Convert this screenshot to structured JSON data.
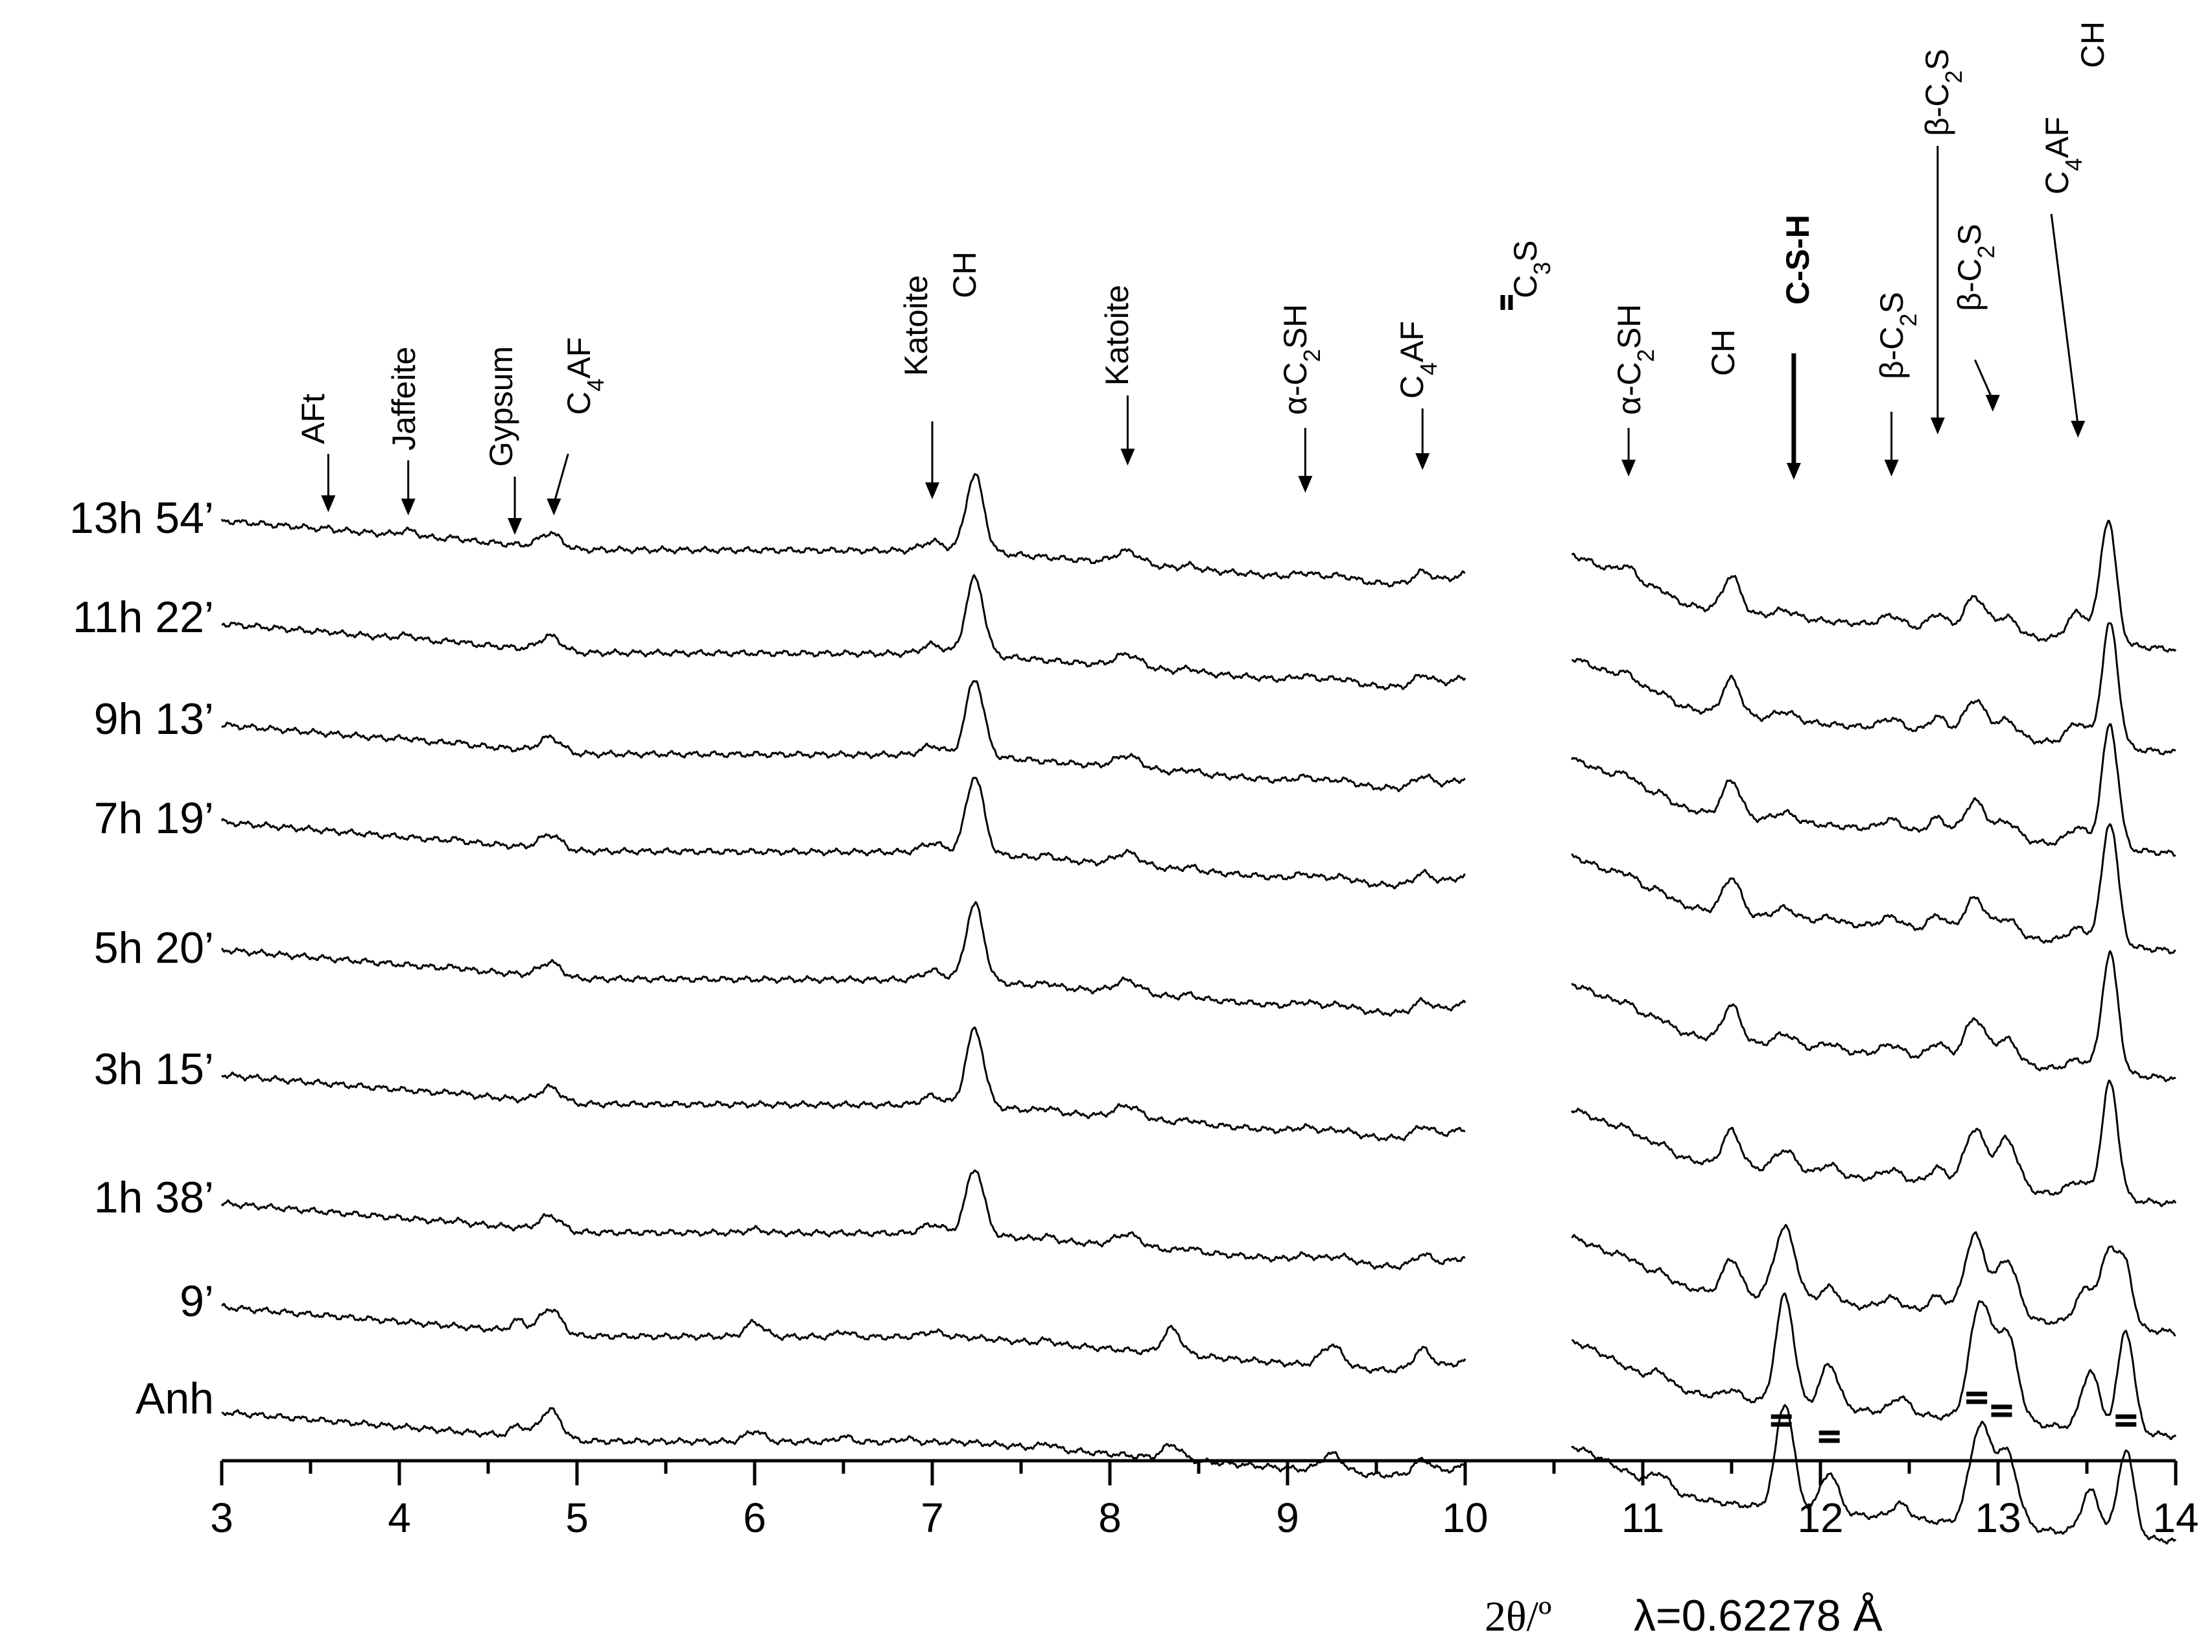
{
  "chart_data": {
    "type": "line",
    "xlabel": "2θ/º",
    "wavelength": "λ=0.62278 Å",
    "xlim": [
      3,
      14
    ],
    "xticks": [
      "3",
      "4",
      "5",
      "6",
      "7",
      "8",
      "9",
      "10",
      "11",
      "12",
      "13",
      "14"
    ],
    "series": [
      {
        "name": "13h 54’",
        "peaks": [
          [
            3.6,
            0.015,
            0.04
          ],
          [
            4.05,
            0.05,
            0.15
          ],
          [
            4.32,
            0.04,
            0.05
          ],
          [
            4.85,
            0.06,
            0.4
          ],
          [
            7.0,
            0.06,
            0.25
          ],
          [
            7.24,
            0.05,
            2.1
          ],
          [
            8.1,
            0.07,
            0.35
          ],
          [
            8.45,
            0.04,
            0.1
          ],
          [
            9.1,
            0.06,
            0.15
          ],
          [
            9.3,
            0.08,
            0.15
          ],
          [
            9.76,
            0.05,
            0.3
          ],
          [
            10.92,
            0.06,
            0.4
          ],
          [
            11.1,
            0.05,
            0.2
          ],
          [
            11.5,
            0.05,
            1.0
          ],
          [
            11.8,
            0.06,
            0.2
          ],
          [
            12.4,
            0.06,
            0.3
          ],
          [
            12.66,
            0.05,
            0.45
          ],
          [
            12.87,
            0.06,
            1.0
          ],
          [
            13.05,
            0.06,
            0.5
          ],
          [
            13.45,
            0.06,
            0.8
          ],
          [
            13.62,
            0.045,
            3.4
          ]
        ]
      },
      {
        "name": "11h 22’",
        "peaks": [
          [
            3.6,
            0.015,
            0.04
          ],
          [
            4.05,
            0.05,
            0.1
          ],
          [
            4.32,
            0.04,
            0.05
          ],
          [
            4.85,
            0.06,
            0.4
          ],
          [
            7.0,
            0.06,
            0.25
          ],
          [
            7.24,
            0.05,
            2.1
          ],
          [
            8.1,
            0.07,
            0.35
          ],
          [
            8.45,
            0.04,
            0.1
          ],
          [
            9.1,
            0.06,
            0.15
          ],
          [
            9.3,
            0.08,
            0.15
          ],
          [
            9.76,
            0.05,
            0.3
          ],
          [
            10.92,
            0.06,
            0.3
          ],
          [
            11.1,
            0.05,
            0.2
          ],
          [
            11.5,
            0.05,
            1.0
          ],
          [
            11.8,
            0.06,
            0.25
          ],
          [
            12.4,
            0.06,
            0.3
          ],
          [
            12.66,
            0.05,
            0.45
          ],
          [
            12.87,
            0.06,
            1.0
          ],
          [
            13.05,
            0.06,
            0.5
          ],
          [
            13.45,
            0.06,
            0.6
          ],
          [
            13.63,
            0.045,
            3.4
          ]
        ]
      },
      {
        "name": "9h 13’",
        "peaks": [
          [
            4.05,
            0.05,
            0.05
          ],
          [
            4.32,
            0.04,
            0.05
          ],
          [
            4.85,
            0.06,
            0.4
          ],
          [
            7.0,
            0.06,
            0.25
          ],
          [
            7.24,
            0.05,
            2.1
          ],
          [
            8.1,
            0.07,
            0.35
          ],
          [
            8.45,
            0.04,
            0.1
          ],
          [
            9.1,
            0.06,
            0.15
          ],
          [
            9.3,
            0.08,
            0.15
          ],
          [
            9.76,
            0.05,
            0.3
          ],
          [
            10.92,
            0.06,
            0.3
          ],
          [
            11.1,
            0.05,
            0.2
          ],
          [
            11.5,
            0.05,
            1.0
          ],
          [
            11.8,
            0.06,
            0.25
          ],
          [
            12.4,
            0.06,
            0.3
          ],
          [
            12.66,
            0.05,
            0.45
          ],
          [
            12.87,
            0.06,
            1.0
          ],
          [
            13.05,
            0.06,
            0.5
          ],
          [
            13.45,
            0.06,
            0.5
          ],
          [
            13.63,
            0.045,
            3.4
          ]
        ]
      },
      {
        "name": "7h 19’",
        "peaks": [
          [
            4.32,
            0.04,
            0.05
          ],
          [
            4.85,
            0.06,
            0.4
          ],
          [
            7.0,
            0.06,
            0.25
          ],
          [
            7.24,
            0.05,
            2.1
          ],
          [
            7.65,
            0.04,
            0.1
          ],
          [
            8.1,
            0.07,
            0.35
          ],
          [
            8.45,
            0.04,
            0.1
          ],
          [
            9.1,
            0.06,
            0.15
          ],
          [
            9.3,
            0.08,
            0.15
          ],
          [
            9.76,
            0.05,
            0.3
          ],
          [
            10.92,
            0.06,
            0.25
          ],
          [
            11.1,
            0.05,
            0.2
          ],
          [
            11.5,
            0.05,
            1.0
          ],
          [
            11.8,
            0.06,
            0.3
          ],
          [
            12.05,
            0.05,
            0.15
          ],
          [
            12.4,
            0.06,
            0.3
          ],
          [
            12.66,
            0.05,
            0.45
          ],
          [
            12.87,
            0.06,
            1.0
          ],
          [
            13.05,
            0.06,
            0.5
          ],
          [
            13.45,
            0.06,
            0.4
          ],
          [
            13.63,
            0.045,
            3.4
          ]
        ]
      },
      {
        "name": "5h 20’",
        "peaks": [
          [
            4.32,
            0.04,
            0.05
          ],
          [
            4.85,
            0.06,
            0.4
          ],
          [
            7.0,
            0.06,
            0.25
          ],
          [
            7.24,
            0.05,
            2.1
          ],
          [
            7.65,
            0.04,
            0.1
          ],
          [
            8.1,
            0.07,
            0.35
          ],
          [
            8.45,
            0.04,
            0.1
          ],
          [
            9.1,
            0.06,
            0.15
          ],
          [
            9.3,
            0.08,
            0.15
          ],
          [
            9.76,
            0.05,
            0.3
          ],
          [
            10.92,
            0.06,
            0.2
          ],
          [
            11.1,
            0.05,
            0.2
          ],
          [
            11.5,
            0.05,
            1.0
          ],
          [
            11.8,
            0.06,
            0.35
          ],
          [
            12.05,
            0.05,
            0.2
          ],
          [
            12.4,
            0.06,
            0.3
          ],
          [
            12.66,
            0.05,
            0.45
          ],
          [
            12.87,
            0.06,
            1.2
          ],
          [
            13.05,
            0.06,
            0.7
          ],
          [
            13.45,
            0.06,
            0.3
          ],
          [
            13.63,
            0.045,
            3.3
          ]
        ]
      },
      {
        "name": "3h 15’",
        "peaks": [
          [
            4.32,
            0.04,
            0.05
          ],
          [
            4.85,
            0.06,
            0.4
          ],
          [
            7.0,
            0.06,
            0.25
          ],
          [
            7.24,
            0.05,
            2.1
          ],
          [
            7.65,
            0.04,
            0.1
          ],
          [
            8.1,
            0.07,
            0.35
          ],
          [
            8.45,
            0.04,
            0.1
          ],
          [
            9.1,
            0.06,
            0.15
          ],
          [
            9.3,
            0.08,
            0.15
          ],
          [
            9.76,
            0.05,
            0.3
          ],
          [
            10.92,
            0.06,
            0.2
          ],
          [
            11.1,
            0.05,
            0.2
          ],
          [
            11.5,
            0.05,
            1.0
          ],
          [
            11.8,
            0.06,
            0.6
          ],
          [
            12.05,
            0.05,
            0.3
          ],
          [
            12.4,
            0.06,
            0.3
          ],
          [
            12.66,
            0.05,
            0.45
          ],
          [
            12.87,
            0.06,
            1.6
          ],
          [
            13.05,
            0.06,
            1.4
          ],
          [
            13.45,
            0.06,
            0.4
          ],
          [
            13.63,
            0.045,
            3.2
          ]
        ]
      },
      {
        "name": "1h 38’",
        "peaks": [
          [
            4.32,
            0.04,
            0.05
          ],
          [
            4.85,
            0.06,
            0.4
          ],
          [
            6.0,
            0.05,
            0.1
          ],
          [
            7.0,
            0.06,
            0.25
          ],
          [
            7.24,
            0.05,
            1.8
          ],
          [
            7.65,
            0.04,
            0.1
          ],
          [
            8.1,
            0.07,
            0.35
          ],
          [
            8.45,
            0.04,
            0.1
          ],
          [
            9.1,
            0.06,
            0.15
          ],
          [
            9.3,
            0.08,
            0.2
          ],
          [
            9.76,
            0.05,
            0.3
          ],
          [
            10.92,
            0.06,
            0.2
          ],
          [
            11.1,
            0.05,
            0.2
          ],
          [
            11.5,
            0.05,
            1.0
          ],
          [
            11.8,
            0.06,
            2.0
          ],
          [
            12.05,
            0.05,
            0.45
          ],
          [
            12.4,
            0.06,
            0.3
          ],
          [
            12.66,
            0.05,
            0.45
          ],
          [
            12.87,
            0.06,
            2.2
          ],
          [
            13.05,
            0.06,
            1.6
          ],
          [
            13.5,
            0.06,
            1.0
          ],
          [
            13.63,
            0.045,
            2.0
          ],
          [
            13.72,
            0.04,
            1.6
          ]
        ]
      },
      {
        "name": "9’",
        "peaks": [
          [
            4.67,
            0.04,
            0.3
          ],
          [
            4.85,
            0.06,
            0.7
          ],
          [
            6.0,
            0.05,
            0.4
          ],
          [
            6.5,
            0.04,
            0.15
          ],
          [
            7.0,
            0.06,
            0.15
          ],
          [
            7.65,
            0.04,
            0.1
          ],
          [
            8.35,
            0.05,
            0.7
          ],
          [
            9.25,
            0.06,
            0.6
          ],
          [
            9.76,
            0.05,
            0.55
          ],
          [
            11.1,
            0.05,
            0.3
          ],
          [
            11.5,
            0.05,
            0.25
          ],
          [
            11.8,
            0.05,
            3.0
          ],
          [
            12.05,
            0.05,
            1.2
          ],
          [
            12.45,
            0.05,
            0.45
          ],
          [
            12.9,
            0.06,
            3.2
          ],
          [
            13.05,
            0.06,
            2.4
          ],
          [
            13.52,
            0.05,
            1.6
          ],
          [
            13.72,
            0.045,
            2.8
          ]
        ]
      },
      {
        "name": "Anh",
        "peaks": [
          [
            4.67,
            0.04,
            0.3
          ],
          [
            4.85,
            0.06,
            0.8
          ],
          [
            6.0,
            0.05,
            0.3
          ],
          [
            6.5,
            0.04,
            0.15
          ],
          [
            6.85,
            0.04,
            0.1
          ],
          [
            7.65,
            0.04,
            0.15
          ],
          [
            8.35,
            0.05,
            0.4
          ],
          [
            9.25,
            0.06,
            0.5
          ],
          [
            9.76,
            0.05,
            0.4
          ],
          [
            11.1,
            0.05,
            0.4
          ],
          [
            11.8,
            0.05,
            2.9
          ],
          [
            12.05,
            0.05,
            1.1
          ],
          [
            12.45,
            0.05,
            0.4
          ],
          [
            12.9,
            0.06,
            2.7
          ],
          [
            13.05,
            0.06,
            2.0
          ],
          [
            13.52,
            0.05,
            1.2
          ],
          [
            13.72,
            0.045,
            2.4
          ]
        ]
      }
    ],
    "annotations": [
      {
        "text": "AFt",
        "x": 3.6,
        "bold": false
      },
      {
        "text": "Jaffeite",
        "x": 4.05,
        "bold": false
      },
      {
        "text": "Gypsum",
        "x": 4.65,
        "bold": false
      },
      {
        "text": "C4AF",
        "x": 4.95,
        "bold": false
      },
      {
        "text": "Katoite",
        "x": 7.0,
        "bold": false
      },
      {
        "text": "CH",
        "x": 7.24,
        "bold": false
      },
      {
        "text": "Katoite",
        "x": 8.1,
        "bold": false
      },
      {
        "text": "α-C2SH",
        "x": 9.1,
        "bold": false
      },
      {
        "text": "C4AF",
        "x": 9.76,
        "bold": false
      },
      {
        "text": "C3S",
        "x": 10.25,
        "bold": false
      },
      {
        "text": "α-C2SH",
        "x": 10.92,
        "bold": false
      },
      {
        "text": "CH",
        "x": 11.5,
        "bold": false
      },
      {
        "text": "C-S-H",
        "x": 11.85,
        "bold": true
      },
      {
        "text": "β-C2S",
        "x": 12.4,
        "bold": false
      },
      {
        "text": "β-C2S",
        "x": 12.66,
        "bold": false
      },
      {
        "text": "β-C2S",
        "x": 12.87,
        "bold": false
      },
      {
        "text": "C4AF",
        "x": 13.3,
        "bold": false
      },
      {
        "text": "CH",
        "x": 13.62,
        "bold": false
      }
    ],
    "c3s_markers": [
      11.78,
      12.05,
      12.88,
      13.02,
      13.72
    ]
  }
}
